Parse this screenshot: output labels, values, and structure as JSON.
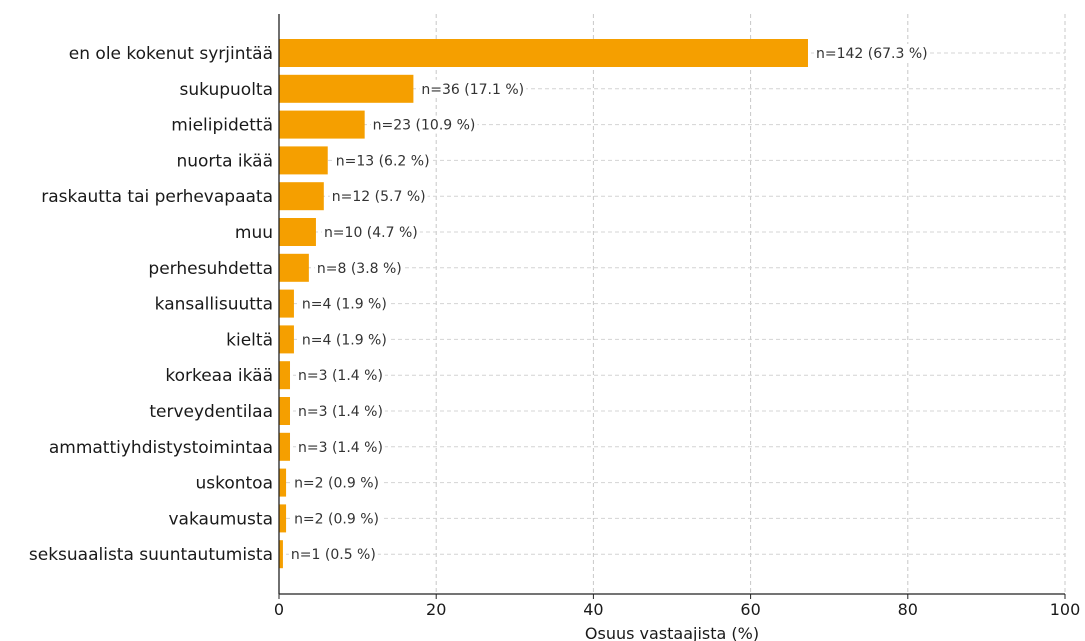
{
  "chart_data": {
    "type": "bar",
    "orientation": "horizontal",
    "title": "",
    "xlabel": "Osuus vastaajista (%)",
    "ylabel": "",
    "xlim": [
      0,
      100
    ],
    "xticks": [
      0,
      20,
      40,
      60,
      80,
      100
    ],
    "grid": true,
    "bar_color": "#f59f00",
    "categories": [
      "en ole kokenut syrjintää",
      "sukupuolta",
      "mielipidettä",
      "nuorta ikää",
      "raskautta tai perhevapaata",
      "muu",
      "perhesuhdetta",
      "kansallisuutta",
      "kieltä",
      "korkeaa ikää",
      "terveydentilaa",
      "ammattiyhdistystoimintaa",
      "uskontoa",
      "vakaumusta",
      "seksuaalista suuntautumista"
    ],
    "values": [
      67.3,
      17.1,
      10.9,
      6.2,
      5.7,
      4.7,
      3.8,
      1.9,
      1.9,
      1.4,
      1.4,
      1.4,
      0.9,
      0.9,
      0.5
    ],
    "labels": [
      "n=142 (67.3 %)",
      "n=36 (17.1 %)",
      "n=23 (10.9 %)",
      "n=13 (6.2 %)",
      "n=12 (5.7 %)",
      "n=10 (4.7 %)",
      "n=8 (3.8 %)",
      "n=4 (1.9 %)",
      "n=4 (1.9 %)",
      "n=3 (1.4 %)",
      "n=3 (1.4 %)",
      "n=3 (1.4 %)",
      "n=2 (0.9 %)",
      "n=2 (0.9 %)",
      "n=1 (0.5 %)"
    ]
  }
}
